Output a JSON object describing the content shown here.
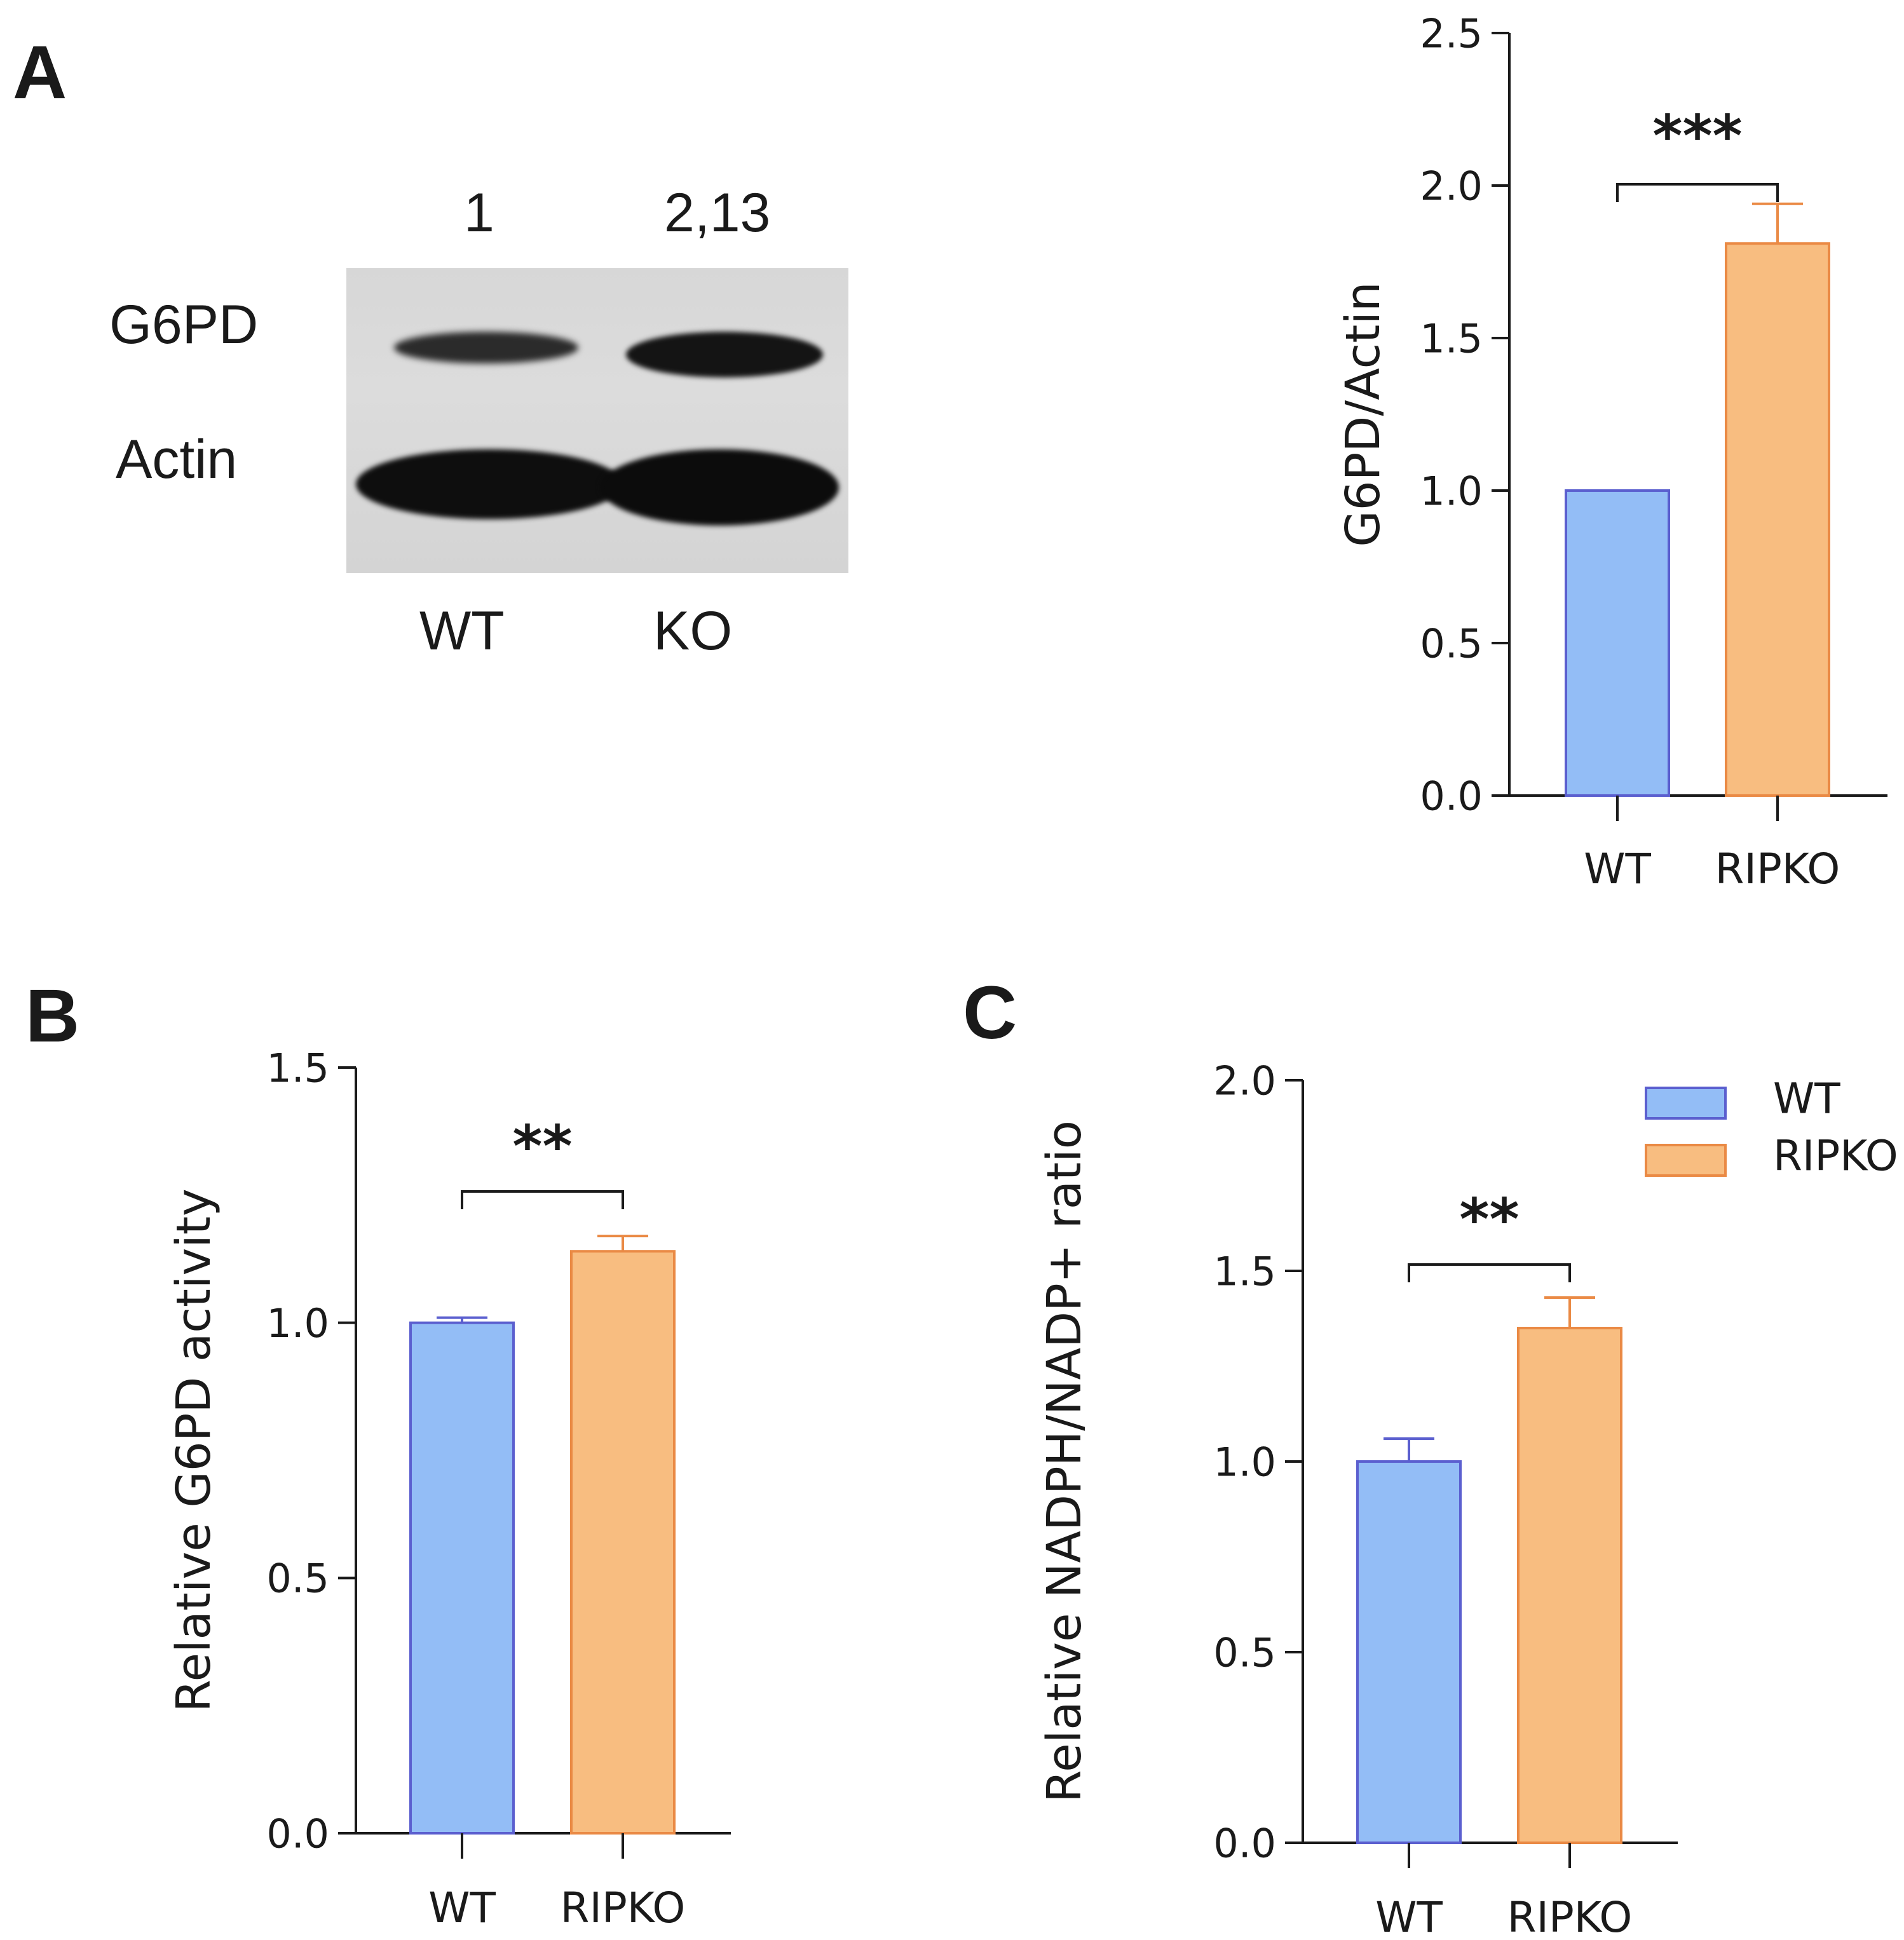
{
  "panels": {
    "a": "A",
    "b": "B",
    "c": "C"
  },
  "blot": {
    "rows": [
      "G6PD",
      "Actin"
    ],
    "lanes": [
      "WT",
      "KO"
    ],
    "ratios": [
      "1",
      "2,13"
    ]
  },
  "colors": {
    "wt_fill": "#93bdf6",
    "wt_edge": "#5b5fcf",
    "ko_fill": "#f8bd80",
    "ko_edge": "#ea8a45",
    "axis": "#1a1a1a"
  },
  "chart_data": [
    {
      "id": "chartA",
      "type": "bar",
      "categories": [
        "WT",
        "RIPKO"
      ],
      "values": [
        1.0,
        1.81
      ],
      "errors": [
        0,
        0.13
      ],
      "ylabel": "G6PD/Actin",
      "ylim": [
        0,
        2.5
      ],
      "yticks": [
        0.0,
        0.5,
        1.0,
        1.5,
        2.0,
        2.5
      ],
      "ytick_labels": [
        "0.0",
        "0.5",
        "1.0",
        "1.5",
        "2.0",
        "2.5"
      ],
      "significance": "***",
      "legend": false
    },
    {
      "id": "chartB",
      "type": "bar",
      "categories": [
        "WT",
        "RIPKO"
      ],
      "values": [
        1.0,
        1.14
      ],
      "errors": [
        0.01,
        0.03
      ],
      "ylabel": "Relative G6PD activity",
      "ylim": [
        0,
        1.5
      ],
      "yticks": [
        0.0,
        0.5,
        1.0,
        1.5
      ],
      "ytick_labels": [
        "0.0",
        "0.5",
        "1.0",
        "1.5"
      ],
      "significance": "**",
      "legend": false
    },
    {
      "id": "chartC",
      "type": "bar",
      "categories": [
        "WT",
        "RIPKO"
      ],
      "values": [
        1.0,
        1.35
      ],
      "errors": [
        0.06,
        0.08
      ],
      "ylabel": "Relative NADPH/NADP+ ratio",
      "ylim": [
        0,
        2.0
      ],
      "yticks": [
        0.0,
        0.5,
        1.0,
        1.5,
        2.0
      ],
      "ytick_labels": [
        "0.0",
        "0.5",
        "1.0",
        "1.5",
        "2.0"
      ],
      "significance": "**",
      "legend": true,
      "legend_entries": [
        "WT",
        "RIPKO"
      ]
    }
  ]
}
